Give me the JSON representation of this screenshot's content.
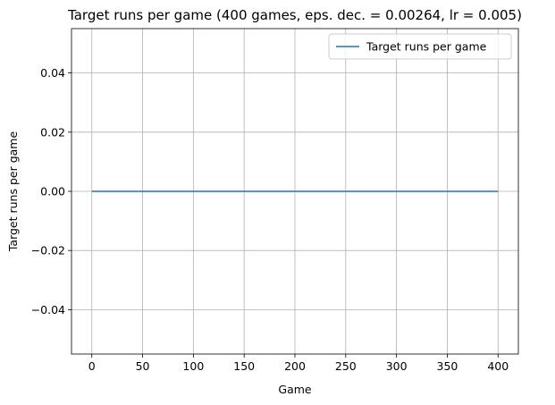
{
  "chart_data": {
    "type": "line",
    "title": "Target runs per game (400 games, eps. dec. = 0.00264, lr = 0.005)",
    "xlabel": "Game",
    "ylabel": "Target runs per game",
    "xlim": [
      -20,
      420
    ],
    "ylim": [
      -0.055,
      0.055
    ],
    "xticks": [
      0,
      50,
      100,
      150,
      200,
      250,
      300,
      350,
      400
    ],
    "xtick_labels": [
      "0",
      "50",
      "100",
      "150",
      "200",
      "250",
      "300",
      "350",
      "400"
    ],
    "yticks": [
      -0.04,
      -0.02,
      0.0,
      0.02,
      0.04
    ],
    "ytick_labels": [
      "−0.04",
      "−0.02",
      "0.00",
      "0.02",
      "0.04"
    ],
    "grid": true,
    "legend_position": "upper right",
    "series": [
      {
        "name": "Target runs per game",
        "color": "#1f77b4",
        "x": [
          0,
          400
        ],
        "y": [
          0,
          0
        ]
      }
    ]
  }
}
